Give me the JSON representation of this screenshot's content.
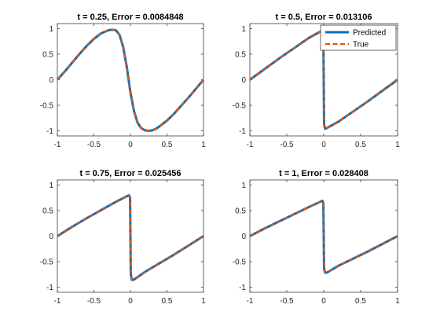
{
  "chart_data": [
    {
      "type": "line",
      "title": "t = 0.25, Error = 0.0084848",
      "xlim": [
        -1,
        1
      ],
      "ylim": [
        -1.1,
        1.1
      ],
      "xticks": [
        "-1",
        "-0.5",
        "0",
        "0.5",
        "1"
      ],
      "yticks": [
        "-1",
        "-0.5",
        "0",
        "0.5",
        "1"
      ],
      "x": [
        -1,
        -0.9,
        -0.8,
        -0.7,
        -0.6,
        -0.5,
        -0.4,
        -0.3,
        -0.25,
        -0.2,
        -0.15,
        -0.1,
        -0.05,
        0,
        0.05,
        0.1,
        0.15,
        0.2,
        0.25,
        0.3,
        0.35,
        0.4,
        0.5,
        0.6,
        0.7,
        0.8,
        0.9,
        1
      ],
      "series": [
        {
          "name": "Predicted",
          "values": [
            0,
            0.16,
            0.33,
            0.5,
            0.66,
            0.8,
            0.91,
            0.97,
            0.98,
            0.97,
            0.88,
            0.65,
            0.25,
            -0.25,
            -0.62,
            -0.85,
            -0.95,
            -0.99,
            -1.0,
            -0.99,
            -0.96,
            -0.91,
            -0.8,
            -0.66,
            -0.5,
            -0.34,
            -0.17,
            0
          ]
        },
        {
          "name": "True",
          "values": [
            0,
            0.16,
            0.33,
            0.5,
            0.66,
            0.8,
            0.91,
            0.97,
            0.98,
            0.97,
            0.88,
            0.65,
            0.25,
            -0.25,
            -0.62,
            -0.85,
            -0.95,
            -0.99,
            -1.0,
            -0.99,
            -0.96,
            -0.91,
            -0.8,
            -0.66,
            -0.5,
            -0.34,
            -0.17,
            0
          ]
        }
      ]
    },
    {
      "type": "line",
      "title": "t = 0.5, Error = 0.013106",
      "xlim": [
        -1,
        1
      ],
      "ylim": [
        -1.1,
        1.1
      ],
      "xticks": [
        "-1",
        "-0.5",
        "0",
        "0.5",
        "1"
      ],
      "yticks": [
        "-1",
        "-0.5",
        "0",
        "0.5",
        "1"
      ],
      "legend": {
        "location": "top-right",
        "entries": [
          "Predicted",
          "True"
        ]
      },
      "x": [
        -1,
        -0.8,
        -0.6,
        -0.4,
        -0.2,
        -0.1,
        -0.05,
        -0.02,
        -0.005,
        0.005,
        0.02,
        0.05,
        0.1,
        0.2,
        0.4,
        0.6,
        0.8,
        1
      ],
      "series": [
        {
          "name": "Predicted",
          "values": [
            0,
            0.21,
            0.42,
            0.62,
            0.82,
            0.9,
            0.94,
            0.95,
            0.9,
            -0.88,
            -0.96,
            -0.94,
            -0.9,
            -0.82,
            -0.62,
            -0.42,
            -0.21,
            0
          ]
        },
        {
          "name": "True",
          "values": [
            0,
            0.21,
            0.42,
            0.62,
            0.82,
            0.9,
            0.94,
            0.95,
            0.9,
            -0.88,
            -0.96,
            -0.94,
            -0.9,
            -0.82,
            -0.62,
            -0.42,
            -0.21,
            0
          ]
        }
      ]
    },
    {
      "type": "line",
      "title": "t = 0.75, Error = 0.025456",
      "xlim": [
        -1,
        1
      ],
      "ylim": [
        -1.1,
        1.1
      ],
      "xticks": [
        "-1",
        "-0.5",
        "0",
        "0.5",
        "1"
      ],
      "yticks": [
        "-1",
        "-0.5",
        "0",
        "0.5",
        "1"
      ],
      "x": [
        -1,
        -0.8,
        -0.6,
        -0.4,
        -0.2,
        -0.05,
        -0.02,
        -0.005,
        0.005,
        0.02,
        0.05,
        0.2,
        0.4,
        0.6,
        0.8,
        1
      ],
      "series": [
        {
          "name": "Predicted",
          "values": [
            0,
            0.18,
            0.35,
            0.51,
            0.67,
            0.78,
            0.8,
            0.76,
            -0.75,
            -0.86,
            -0.85,
            -0.7,
            -0.53,
            -0.36,
            -0.18,
            0
          ]
        },
        {
          "name": "True",
          "values": [
            0,
            0.18,
            0.35,
            0.51,
            0.67,
            0.78,
            0.8,
            0.76,
            -0.75,
            -0.86,
            -0.85,
            -0.7,
            -0.53,
            -0.36,
            -0.18,
            0
          ]
        }
      ]
    },
    {
      "type": "line",
      "title": "t = 1, Error = 0.028408",
      "xlim": [
        -1,
        1
      ],
      "ylim": [
        -1.1,
        1.1
      ],
      "xticks": [
        "-1",
        "-0.5",
        "0",
        "0.5",
        "1"
      ],
      "yticks": [
        "-1",
        "-0.5",
        "0",
        "0.5",
        "1"
      ],
      "x": [
        -1,
        -0.8,
        -0.6,
        -0.4,
        -0.2,
        -0.05,
        -0.02,
        -0.005,
        0.005,
        0.02,
        0.05,
        0.2,
        0.4,
        0.6,
        0.8,
        1
      ],
      "series": [
        {
          "name": "Predicted",
          "values": [
            0,
            0.15,
            0.29,
            0.43,
            0.57,
            0.67,
            0.69,
            0.65,
            -0.64,
            -0.72,
            -0.71,
            -0.58,
            -0.44,
            -0.3,
            -0.15,
            0
          ]
        },
        {
          "name": "True",
          "values": [
            0,
            0.15,
            0.29,
            0.43,
            0.57,
            0.67,
            0.69,
            0.65,
            -0.64,
            -0.72,
            -0.71,
            -0.58,
            -0.44,
            -0.3,
            -0.15,
            0
          ]
        }
      ]
    }
  ],
  "style": {
    "predicted_color": "#0072BD",
    "true_color": "#D95319",
    "axis_color": "#262626"
  }
}
